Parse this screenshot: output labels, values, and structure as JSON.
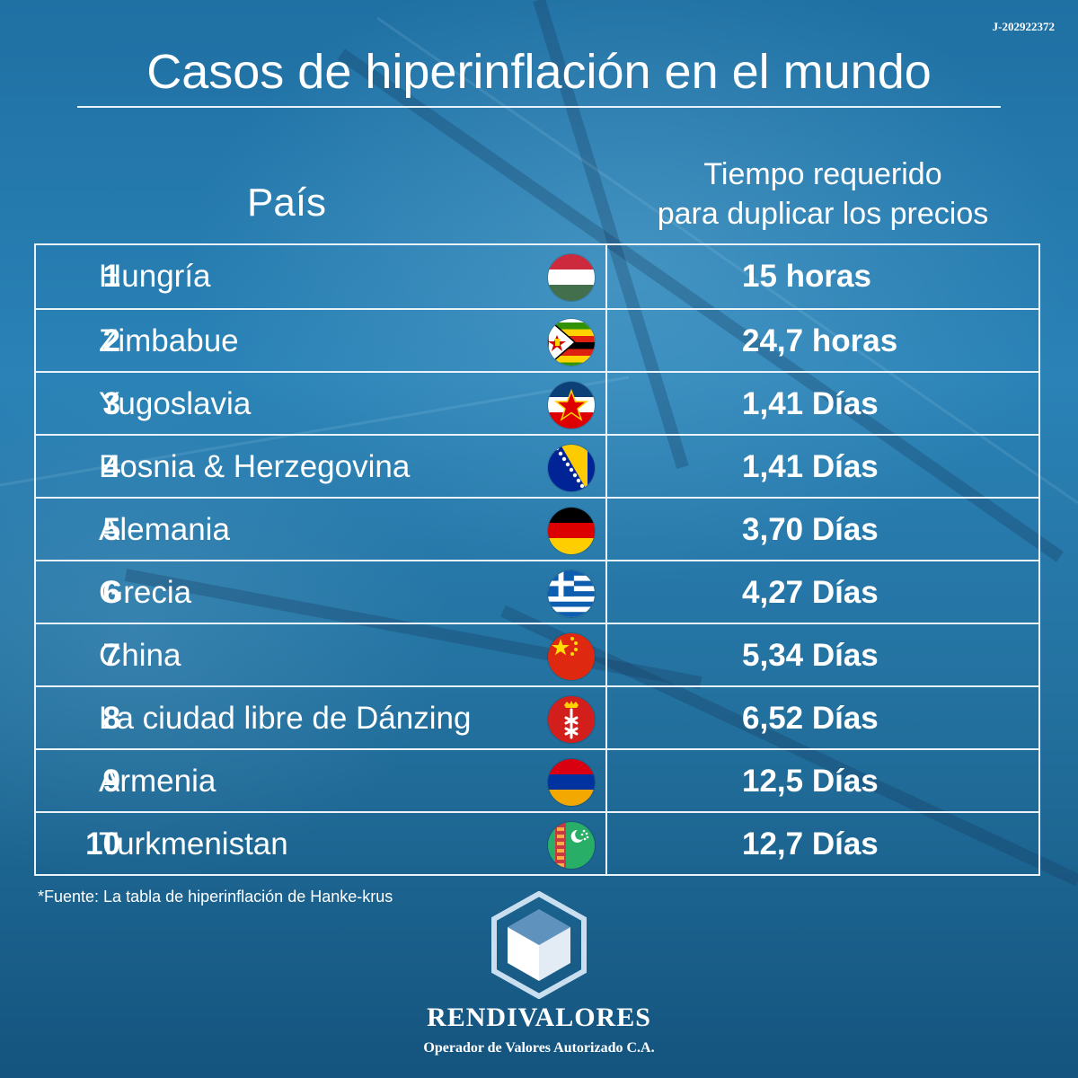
{
  "registration_code": "J-202922372",
  "title": "Casos de hiperinflación en el mundo",
  "headers": {
    "country": "País",
    "time_line1": "Tiempo requerido",
    "time_line2": "para duplicar los precios"
  },
  "rows": [
    {
      "rank": "1",
      "country": "Hungría",
      "time": "15 horas",
      "flag": "hungary-flag-icon"
    },
    {
      "rank": "2",
      "country": "Zimbabue",
      "time": "24,7 horas",
      "flag": "zimbabwe-flag-icon"
    },
    {
      "rank": "3",
      "country": "Yugoslavia",
      "time": "1,41 Días",
      "flag": "yugoslavia-flag-icon"
    },
    {
      "rank": "4",
      "country": "Bosnia & Herzegovina",
      "time": "1,41 Días",
      "flag": "bosnia-flag-icon"
    },
    {
      "rank": "5",
      "country": "Alemania",
      "time": "3,70 Días",
      "flag": "germany-flag-icon"
    },
    {
      "rank": "6",
      "country": "Grecia",
      "time": "4,27 Días",
      "flag": "greece-flag-icon"
    },
    {
      "rank": "7",
      "country": "China",
      "time": "5,34 Días",
      "flag": "china-flag-icon"
    },
    {
      "rank": "8",
      "country": "La ciudad libre de Dánzing",
      "time": "6,52 Días",
      "flag": "danzig-flag-icon"
    },
    {
      "rank": "9",
      "country": "Armenia",
      "time": "12,5 Días",
      "flag": "armenia-flag-icon"
    },
    {
      "rank": "10",
      "country": "Turkmenistan",
      "time": "12,7 Días",
      "flag": "turkmenistan-flag-icon"
    }
  ],
  "source": "*Fuente: La tabla de hiperinflación de Hanke-krus",
  "brand": {
    "name": "RENDIVALORES",
    "tagline": "Operador de Valores Autorizado C.A.",
    "logo_icon": "cube-logo-icon"
  },
  "colors": {
    "background": "#2478aa",
    "text": "#ffffff",
    "table_border": "#e9f3f9"
  }
}
